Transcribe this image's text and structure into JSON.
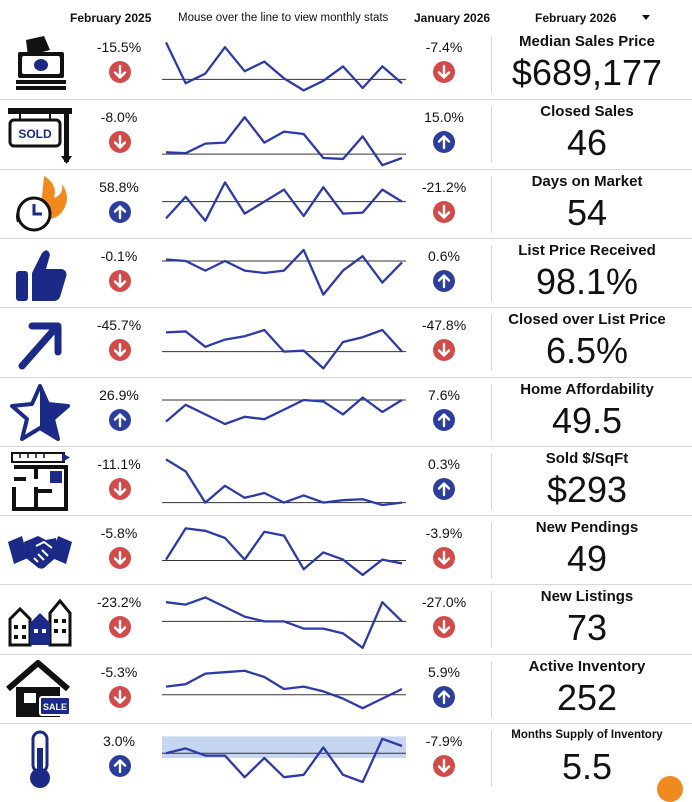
{
  "header": {
    "col_a": "February 2025",
    "hint": "Mouse over the line to view monthly stats",
    "col_b": "January 2026",
    "period_select": "February 2026"
  },
  "colors": {
    "line": "#2c3aa8",
    "down": "#d24b4b",
    "up": "#2c3e9c",
    "band": "#c6d6f0",
    "baseline": "#333333",
    "icon": "#1b2a86",
    "orange": "#f08a1e"
  },
  "rows": [
    {
      "icon": "money-icon",
      "label": "Median Sales Price",
      "value": "$689,177",
      "pct_a": "-15.5%",
      "dir_a": "down",
      "pct_b": "-7.4%",
      "dir_b": "down",
      "trend": [
        0.95,
        0.1,
        0.3,
        0.85,
        0.35,
        0.55,
        0.2,
        -0.05,
        0.15,
        0.45,
        0.0,
        0.45,
        0.1
      ],
      "baseline": 0.18
    },
    {
      "icon": "sold-sign-icon",
      "label": "Closed Sales",
      "value": "46",
      "pct_a": "-8.0%",
      "dir_a": "down",
      "pct_b": "15.0%",
      "dir_b": "up",
      "trend": [
        0.12,
        0.1,
        0.3,
        0.32,
        0.85,
        0.32,
        0.55,
        0.5,
        0.0,
        -0.02,
        0.45,
        -0.15,
        0.0
      ],
      "baseline": 0.08
    },
    {
      "icon": "clock-flame-icon",
      "label": "Days on Market",
      "value": "54",
      "pct_a": "58.8%",
      "dir_a": "up",
      "pct_b": "-21.2%",
      "dir_b": "down",
      "trend": [
        0.2,
        0.65,
        0.15,
        0.95,
        0.3,
        0.55,
        0.8,
        0.25,
        0.85,
        0.3,
        0.32,
        0.8,
        0.55
      ],
      "baseline": 0.55
    },
    {
      "icon": "thumbs-up-icon",
      "label": "List Price Received",
      "value": "98.1%",
      "pct_a": "-0.1%",
      "dir_a": "down",
      "pct_b": "0.6%",
      "dir_b": "up",
      "trend": [
        0.78,
        0.75,
        0.55,
        0.75,
        0.55,
        0.5,
        0.55,
        0.98,
        0.05,
        0.55,
        0.85,
        0.3,
        0.72
      ],
      "baseline": 0.75
    },
    {
      "icon": "arrow-up-right-icon",
      "label": "Closed over List Price",
      "value": "6.5%",
      "pct_a": "-45.7%",
      "dir_a": "down",
      "pct_b": "-47.8%",
      "dir_b": "down",
      "trend": [
        0.7,
        0.72,
        0.4,
        0.55,
        0.62,
        0.75,
        0.3,
        0.32,
        -0.05,
        0.5,
        0.6,
        0.75,
        0.3
      ],
      "baseline": 0.3
    },
    {
      "icon": "star-icon",
      "label": "Home Affordability",
      "value": "49.5",
      "pct_a": "26.9%",
      "dir_a": "up",
      "pct_b": "7.6%",
      "dir_b": "up",
      "trend": [
        0.3,
        0.65,
        0.45,
        0.25,
        0.4,
        0.35,
        0.55,
        0.75,
        0.72,
        0.45,
        0.8,
        0.5,
        0.75
      ],
      "baseline": 0.75
    },
    {
      "icon": "floor-plan-icon",
      "label": "Sold $/SqFt",
      "value": "$293",
      "pct_a": "-11.1%",
      "dir_a": "down",
      "pct_b": "0.3%",
      "dir_b": "up",
      "trend": [
        0.95,
        0.7,
        0.05,
        0.4,
        0.15,
        0.25,
        0.05,
        0.2,
        0.05,
        0.1,
        0.12,
        0.0,
        0.05
      ],
      "baseline": 0.05
    },
    {
      "icon": "handshake-icon",
      "label": "New Pendings",
      "value": "49",
      "pct_a": "-5.8%",
      "dir_a": "down",
      "pct_b": "-3.9%",
      "dir_b": "down",
      "trend": [
        0.3,
        0.95,
        0.9,
        0.75,
        0.3,
        0.88,
        0.8,
        0.1,
        0.45,
        0.3,
        -0.02,
        0.3,
        0.22
      ],
      "baseline": 0.28
    },
    {
      "icon": "houses-icon",
      "label": "New Listings",
      "value": "73",
      "pct_a": "-23.2%",
      "dir_a": "down",
      "pct_b": "-27.0%",
      "dir_b": "down",
      "trend": [
        0.85,
        0.8,
        0.95,
        0.75,
        0.55,
        0.45,
        0.45,
        0.3,
        0.3,
        0.2,
        -0.1,
        0.85,
        0.45
      ],
      "baseline": 0.45
    },
    {
      "icon": "house-for-sale-icon",
      "label": "Active Inventory",
      "value": "252",
      "pct_a": "-5.3%",
      "dir_a": "down",
      "pct_b": "5.9%",
      "dir_b": "up",
      "trend": [
        0.55,
        0.6,
        0.82,
        0.85,
        0.88,
        0.75,
        0.5,
        0.55,
        0.45,
        0.3,
        0.1,
        0.3,
        0.5
      ],
      "baseline": 0.38
    },
    {
      "icon": "thermometer-icon",
      "label": "Months Supply of Inventory",
      "value": "5.5",
      "pct_a": "3.0%",
      "dir_a": "up",
      "pct_b": "-7.9%",
      "dir_b": "down",
      "trend": [
        0.6,
        0.7,
        0.55,
        0.55,
        0.1,
        0.5,
        0.1,
        0.15,
        0.72,
        0.15,
        0.0,
        0.9,
        0.75
      ],
      "baseline": 0.6,
      "band": true,
      "small_label": true
    }
  ]
}
